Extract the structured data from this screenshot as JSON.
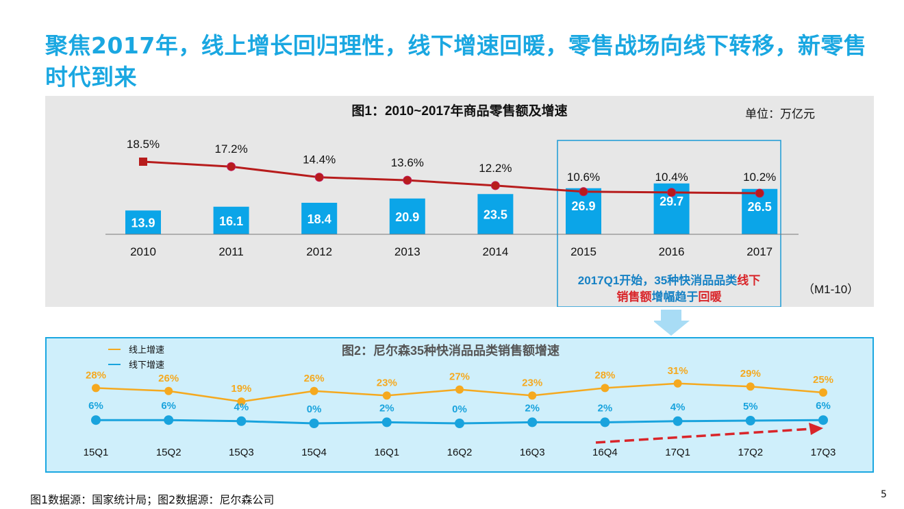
{
  "page": {
    "title": "聚焦2017年，线上增长回归理性，线下增速回暖，零售战场向线下转移，新零售时代到来",
    "footer_source": "图1数据源：国家统计局；图2数据源：尼尔森公司",
    "page_number": "5"
  },
  "colors": {
    "title": "#1aa7e1",
    "bar": "#0ba5e8",
    "growth_line": "#b71c1c",
    "online": "#f5a91f",
    "offline": "#19a3dd",
    "panel1_bg": "#e7e7e7",
    "panel2_bg": "#cfeffb",
    "highlight_border": "#1a9ad6",
    "callout_blue": "#1681c4",
    "callout_red": "#d9252a",
    "trend_arrow": "#d9252a"
  },
  "chart_data": [
    {
      "type": "bar",
      "title": "图1：2010~2017年商品零售额及增速",
      "unit_label": "单位：万亿元",
      "categories": [
        "2010",
        "2011",
        "2012",
        "2013",
        "2014",
        "2015",
        "2016",
        "2017"
      ],
      "series": [
        {
          "type": "bar",
          "values": [
            13.9,
            16.1,
            18.4,
            20.9,
            23.5,
            26.9,
            29.7,
            26.5
          ]
        },
        {
          "type": "line",
          "values": [
            18.5,
            17.2,
            14.4,
            13.6,
            12.2,
            10.6,
            10.4,
            10.2
          ],
          "labels": [
            "18.5%",
            "17.2%",
            "14.4%",
            "13.6%",
            "12.2%",
            "10.6%",
            "10.4%",
            "10.2%"
          ]
        }
      ],
      "note": "（M1-10）",
      "callout": {
        "line1_a": "2017Q1开始，35种快消品品类",
        "line1_b": "线下",
        "line2_a": "销售额",
        "line2_b": "增幅趋于",
        "line2_c": "回暖"
      }
    },
    {
      "type": "line",
      "title": "图2：尼尔森35种快消品品类销售额增速",
      "categories": [
        "15Q1",
        "15Q2",
        "15Q3",
        "15Q4",
        "16Q1",
        "16Q2",
        "16Q3",
        "16Q4",
        "17Q1",
        "17Q2",
        "17Q3"
      ],
      "series": [
        {
          "name": "线上增速",
          "values": [
            28,
            26,
            19,
            26,
            23,
            27,
            23,
            28,
            31,
            29,
            25
          ],
          "labels": [
            "28%",
            "26%",
            "19%",
            "26%",
            "23%",
            "27%",
            "23%",
            "28%",
            "31%",
            "29%",
            "25%"
          ]
        },
        {
          "name": "线下增速",
          "values": [
            6,
            6,
            4,
            0,
            2,
            0,
            2,
            2,
            4,
            5,
            6
          ],
          "labels": [
            "6%",
            "6%",
            "4%",
            "0%",
            "2%",
            "0%",
            "2%",
            "2%",
            "4%",
            "5%",
            "6%"
          ]
        }
      ]
    }
  ]
}
